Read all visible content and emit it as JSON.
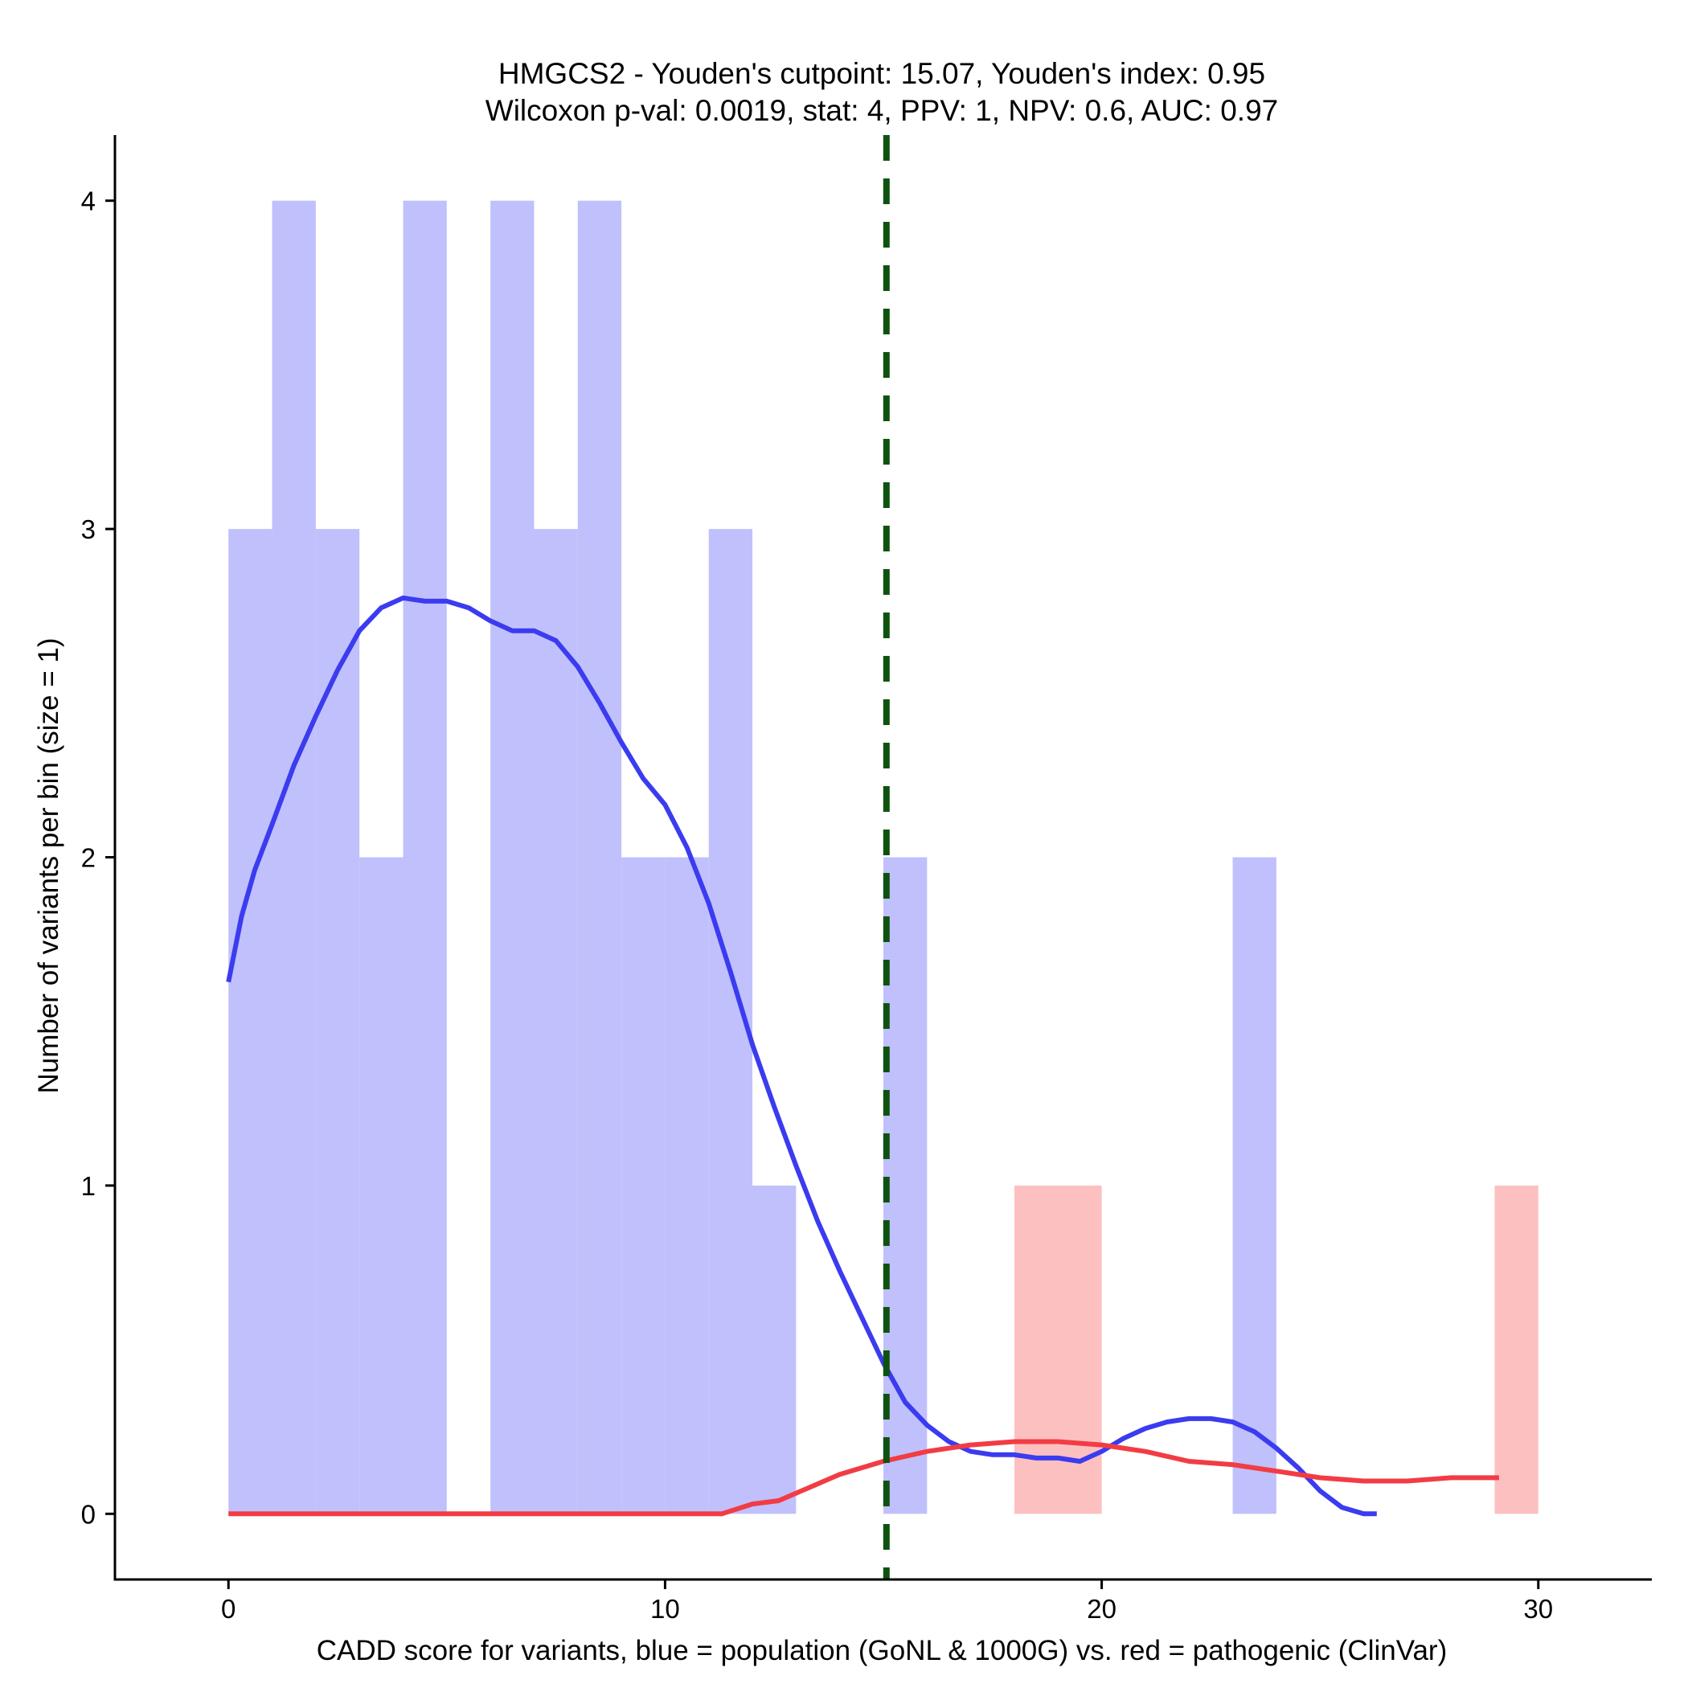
{
  "chart_data": {
    "type": "histogram",
    "title_line1": "HMGCS2 - Youden's cutpoint: 15.07, Youden's index: 0.95",
    "title_line2": "Wilcoxon p-val: 0.0019, stat: 4, PPV: 1, NPV: 0.6, AUC: 0.97",
    "xlabel": "CADD score for variants, blue = population (GoNL & 1000G) vs. red = pathogenic (ClinVar)",
    "ylabel": "Number of variants per bin (size = 1)",
    "xlim": [
      -2.6,
      32.6
    ],
    "ylim": [
      -0.2,
      4.2
    ],
    "x_ticks": [
      0,
      10,
      20,
      30
    ],
    "y_ticks": [
      0,
      1,
      2,
      3,
      4
    ],
    "x_tick_labels": [
      "0",
      "10",
      "20",
      "30"
    ],
    "y_tick_labels": [
      "0",
      "1",
      "2",
      "3",
      "4"
    ],
    "bin_size": 1,
    "cutpoint": 15.07,
    "colors": {
      "population_bar": "#c0c0fd",
      "pathogenic_bar": "#fdc0c1",
      "population_line": "#3b3bf0",
      "pathogenic_line": "#f23c44",
      "cutpoint_line": "#0f520f"
    },
    "series": [
      {
        "name": "population",
        "bins": [
          {
            "x0": 0,
            "x1": 1,
            "count": 3
          },
          {
            "x0": 1,
            "x1": 2,
            "count": 4
          },
          {
            "x0": 2,
            "x1": 3,
            "count": 3
          },
          {
            "x0": 3,
            "x1": 4,
            "count": 2
          },
          {
            "x0": 4,
            "x1": 5,
            "count": 4
          },
          {
            "x0": 6,
            "x1": 7,
            "count": 4
          },
          {
            "x0": 7,
            "x1": 8,
            "count": 3
          },
          {
            "x0": 8,
            "x1": 9,
            "count": 4
          },
          {
            "x0": 9,
            "x1": 10,
            "count": 2
          },
          {
            "x0": 10,
            "x1": 11,
            "count": 2
          },
          {
            "x0": 11,
            "x1": 12,
            "count": 3
          },
          {
            "x0": 12,
            "x1": 13,
            "count": 1
          },
          {
            "x0": 15,
            "x1": 16,
            "count": 2
          },
          {
            "x0": 23,
            "x1": 24,
            "count": 2
          }
        ],
        "density": [
          [
            0,
            1.62
          ],
          [
            0.3,
            1.82
          ],
          [
            0.6,
            1.96
          ],
          [
            1,
            2.1
          ],
          [
            1.5,
            2.28
          ],
          [
            2,
            2.43
          ],
          [
            2.5,
            2.57
          ],
          [
            3,
            2.69
          ],
          [
            3.5,
            2.76
          ],
          [
            4,
            2.79
          ],
          [
            4.5,
            2.78
          ],
          [
            5,
            2.78
          ],
          [
            5.5,
            2.76
          ],
          [
            6,
            2.72
          ],
          [
            6.5,
            2.69
          ],
          [
            7,
            2.69
          ],
          [
            7.5,
            2.66
          ],
          [
            8,
            2.58
          ],
          [
            8.5,
            2.47
          ],
          [
            9,
            2.35
          ],
          [
            9.5,
            2.24
          ],
          [
            10,
            2.16
          ],
          [
            10.5,
            2.03
          ],
          [
            11,
            1.86
          ],
          [
            11.5,
            1.65
          ],
          [
            12,
            1.43
          ],
          [
            12.5,
            1.24
          ],
          [
            13,
            1.06
          ],
          [
            13.5,
            0.89
          ],
          [
            14,
            0.74
          ],
          [
            14.5,
            0.6
          ],
          [
            15,
            0.46
          ],
          [
            15.5,
            0.34
          ],
          [
            16,
            0.27
          ],
          [
            16.5,
            0.22
          ],
          [
            17,
            0.19
          ],
          [
            17.5,
            0.18
          ],
          [
            18,
            0.18
          ],
          [
            18.5,
            0.17
          ],
          [
            19,
            0.17
          ],
          [
            19.5,
            0.16
          ],
          [
            20,
            0.19
          ],
          [
            20.5,
            0.23
          ],
          [
            21,
            0.26
          ],
          [
            21.5,
            0.28
          ],
          [
            22,
            0.29
          ],
          [
            22.5,
            0.29
          ],
          [
            23,
            0.28
          ],
          [
            23.5,
            0.25
          ],
          [
            24,
            0.2
          ],
          [
            24.5,
            0.14
          ],
          [
            25,
            0.07
          ],
          [
            25.5,
            0.02
          ],
          [
            26,
            0.0
          ],
          [
            26.3,
            0.0
          ]
        ]
      },
      {
        "name": "pathogenic",
        "bins": [
          {
            "x0": 18,
            "x1": 20,
            "count": 1
          },
          {
            "x0": 29,
            "x1": 30,
            "count": 1
          }
        ],
        "density": [
          [
            0,
            0.0
          ],
          [
            2,
            0.0
          ],
          [
            4,
            0.0
          ],
          [
            6,
            0.0
          ],
          [
            8,
            0.0
          ],
          [
            10,
            0.0
          ],
          [
            11.3,
            0.0
          ],
          [
            12,
            0.03
          ],
          [
            12.6,
            0.04
          ],
          [
            13.3,
            0.08
          ],
          [
            14,
            0.12
          ],
          [
            15,
            0.16
          ],
          [
            16,
            0.19
          ],
          [
            17,
            0.21
          ],
          [
            18,
            0.22
          ],
          [
            19,
            0.22
          ],
          [
            20,
            0.21
          ],
          [
            21,
            0.19
          ],
          [
            22,
            0.16
          ],
          [
            23,
            0.15
          ],
          [
            24,
            0.13
          ],
          [
            25,
            0.11
          ],
          [
            26,
            0.1
          ],
          [
            27,
            0.1
          ],
          [
            28,
            0.11
          ],
          [
            29.1,
            0.11
          ]
        ]
      }
    ]
  }
}
